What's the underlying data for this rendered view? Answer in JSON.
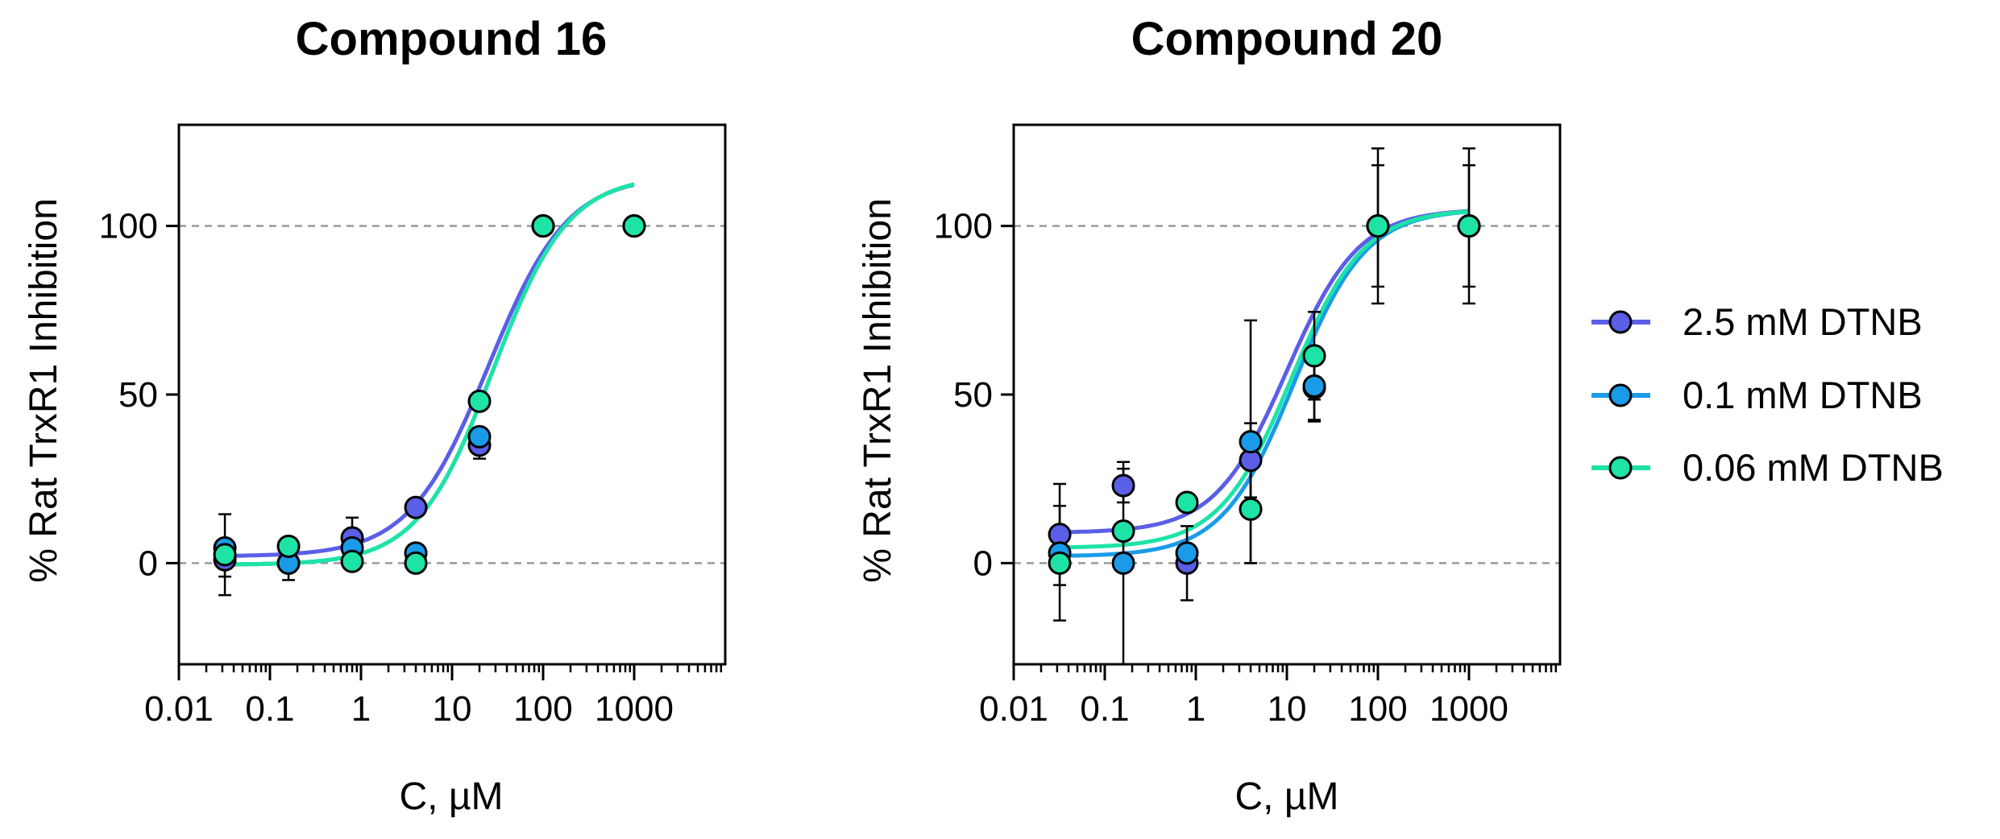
{
  "chart_data": [
    {
      "type": "scatter",
      "title": "Compound 16",
      "xlabel": "C, µM",
      "ylabel": "% Rat TrxR1 Inhibition",
      "xscale": "log",
      "xlim": [
        0.01,
        10000
      ],
      "ylim": [
        -30,
        130
      ],
      "xticks": [
        0.01,
        0.1,
        1,
        10,
        100,
        1000
      ],
      "xtick_labels": [
        "0.01",
        "0.1",
        "1",
        "10",
        "100",
        "1000"
      ],
      "yticks": [
        0,
        50,
        100
      ],
      "ytick_labels": [
        "0",
        "50",
        "100"
      ],
      "reference_lines": [
        0,
        100
      ],
      "series": [
        {
          "name": "2.5 mM DTNB",
          "color": "#5b5ee6",
          "x": [
            0.032,
            0.16,
            0.8,
            4,
            20,
            100,
            1000
          ],
          "y": [
            1,
            0,
            7.5,
            16.5,
            35,
            100,
            100
          ],
          "err": [
            5,
            5,
            6,
            0,
            4,
            0,
            0
          ],
          "fit": {
            "bottom": 2,
            "top": 115,
            "logEC50": 1.4,
            "hill": 1.0
          }
        },
        {
          "name": "0.1 mM DTNB",
          "color": "#1a9be8",
          "x": [
            0.032,
            0.16,
            0.8,
            4,
            20,
            100,
            1000
          ],
          "y": [
            4.5,
            0,
            4.5,
            3,
            37.5,
            100,
            100
          ],
          "err": [
            0,
            0,
            0,
            0,
            0,
            0,
            0
          ],
          "fit": {
            "bottom": -0.5,
            "top": 115,
            "logEC50": 1.45,
            "hill": 1.05
          }
        },
        {
          "name": "0.06 mM DTNB",
          "color": "#1de3a7",
          "x": [
            0.032,
            0.16,
            0.8,
            4,
            20,
            100,
            1000
          ],
          "y": [
            2.5,
            5,
            0.5,
            0,
            48,
            100,
            100
          ],
          "err": [
            12,
            0,
            0,
            0,
            0,
            0,
            0
          ],
          "fit": {
            "bottom": -0.5,
            "top": 115,
            "logEC50": 1.45,
            "hill": 1.05
          }
        }
      ]
    },
    {
      "type": "scatter",
      "title": "Compound 20",
      "xlabel": "C, µM",
      "ylabel": "% Rat TrxR1 Inhibition",
      "xscale": "log",
      "xlim": [
        0.01,
        10000
      ],
      "ylim": [
        -30,
        130
      ],
      "xticks": [
        0.01,
        0.1,
        1,
        10,
        100,
        1000
      ],
      "xtick_labels": [
        "0.01",
        "0.1",
        "1",
        "10",
        "100",
        "1000"
      ],
      "yticks": [
        0,
        50,
        100
      ],
      "ytick_labels": [
        "0",
        "50",
        "100"
      ],
      "reference_lines": [
        0,
        100
      ],
      "series": [
        {
          "name": "2.5 mM DTNB",
          "color": "#5b5ee6",
          "x": [
            0.032,
            0.16,
            0.8,
            4,
            20,
            100,
            1000
          ],
          "y": [
            8.5,
            23,
            0,
            30.5,
            52,
            100,
            100
          ],
          "err": [
            15,
            5,
            11,
            11,
            10,
            23,
            23
          ],
          "fit": {
            "bottom": 9,
            "top": 105,
            "logEC50": 1.0,
            "hill": 1.1
          }
        },
        {
          "name": "0.1 mM DTNB",
          "color": "#1a9be8",
          "x": [
            0.032,
            0.16,
            0.8,
            4,
            20,
            100,
            1000
          ],
          "y": [
            3,
            0,
            3,
            36,
            52.5,
            100,
            100
          ],
          "err": [
            0,
            30,
            0,
            36,
            10,
            18,
            18
          ],
          "fit": {
            "bottom": 2,
            "top": 105,
            "logEC50": 1.08,
            "hill": 1.1
          }
        },
        {
          "name": "0.06 mM DTNB",
          "color": "#1de3a7",
          "x": [
            0.032,
            0.16,
            0.8,
            4,
            20,
            100,
            1000
          ],
          "y": [
            0,
            9.5,
            18,
            16,
            61.5,
            100,
            100
          ],
          "err": [
            17,
            0,
            0,
            16,
            13,
            0,
            0
          ],
          "fit": {
            "bottom": 4.5,
            "top": 105,
            "logEC50": 1.05,
            "hill": 1.1
          }
        }
      ]
    }
  ],
  "legend": {
    "items": [
      {
        "label": "2.5 mM DTNB",
        "color": "#5b5ee6"
      },
      {
        "label": "0.1 mM DTNB",
        "color": "#1a9be8"
      },
      {
        "label": "0.06 mM DTNB",
        "color": "#1de3a7"
      }
    ]
  }
}
